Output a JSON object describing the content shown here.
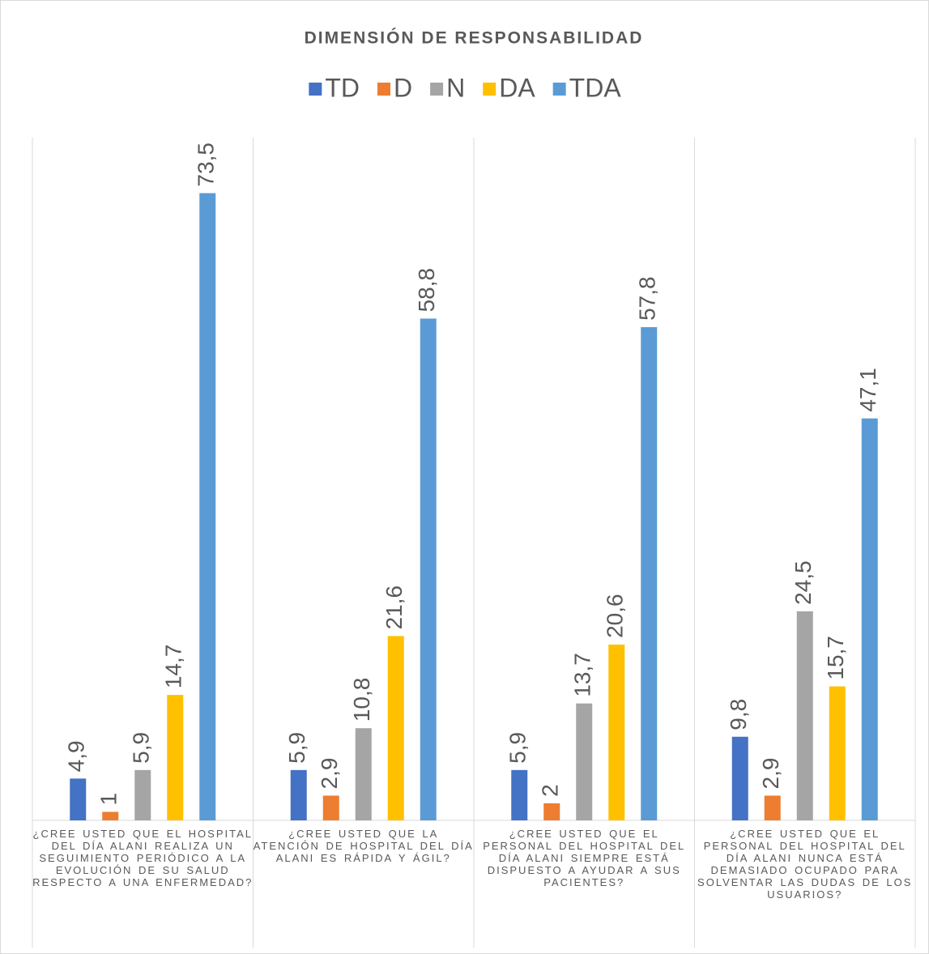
{
  "chart_data": {
    "type": "bar",
    "title": "DIMENSIÓN DE RESPONSABILIDAD",
    "categories": [
      "¿CREE USTED QUE EL HOSPITAL DEL DÍA ALANI REALIZA UN SEGUIMIENTO PERIÓDICO A LA EVOLUCIÓN DE SU SALUD RESPECTO A UNA ENFERMEDAD?",
      "¿CREE USTED QUE LA ATENCIÓN DE HOSPITAL DEL DÍA ALANI ES RÁPIDA Y ÁGIL?",
      "¿CREE USTED QUE EL PERSONAL DEL HOSPITAL DEL DÍA ALANI SIEMPRE ESTÁ DISPUESTO A AYUDAR A SUS PACIENTES?",
      "¿CREE USTED QUE EL PERSONAL DEL HOSPITAL DEL DÍA ALANI NUNCA ESTÁ DEMASIADO OCUPADO PARA SOLVENTAR LAS DUDAS DE LOS USUARIOS?"
    ],
    "series": [
      {
        "name": "TD",
        "color": "#4472c4",
        "values": [
          4.9,
          5.9,
          5.9,
          9.8
        ],
        "value_labels": [
          "4,9",
          "5,9",
          "5,9",
          "9,8"
        ]
      },
      {
        "name": "D",
        "color": "#ed7d31",
        "values": [
          1,
          2.9,
          2,
          2.9
        ],
        "value_labels": [
          "1",
          "2,9",
          "2",
          "2,9"
        ]
      },
      {
        "name": "N",
        "color": "#a5a5a5",
        "values": [
          5.9,
          10.8,
          13.7,
          24.5
        ],
        "value_labels": [
          "5,9",
          "10,8",
          "13,7",
          "24,5"
        ]
      },
      {
        "name": "DA",
        "color": "#ffc000",
        "values": [
          14.7,
          21.6,
          20.6,
          15.7
        ],
        "value_labels": [
          "14,7",
          "21,6",
          "20,6",
          "15,7"
        ]
      },
      {
        "name": "TDA",
        "color": "#5b9bd5",
        "values": [
          73.5,
          58.8,
          57.8,
          47.1
        ],
        "value_labels": [
          "73,5",
          "58,8",
          "57,8",
          "47,1"
        ]
      }
    ],
    "ylim": [
      0,
      80
    ],
    "legend": "top"
  }
}
